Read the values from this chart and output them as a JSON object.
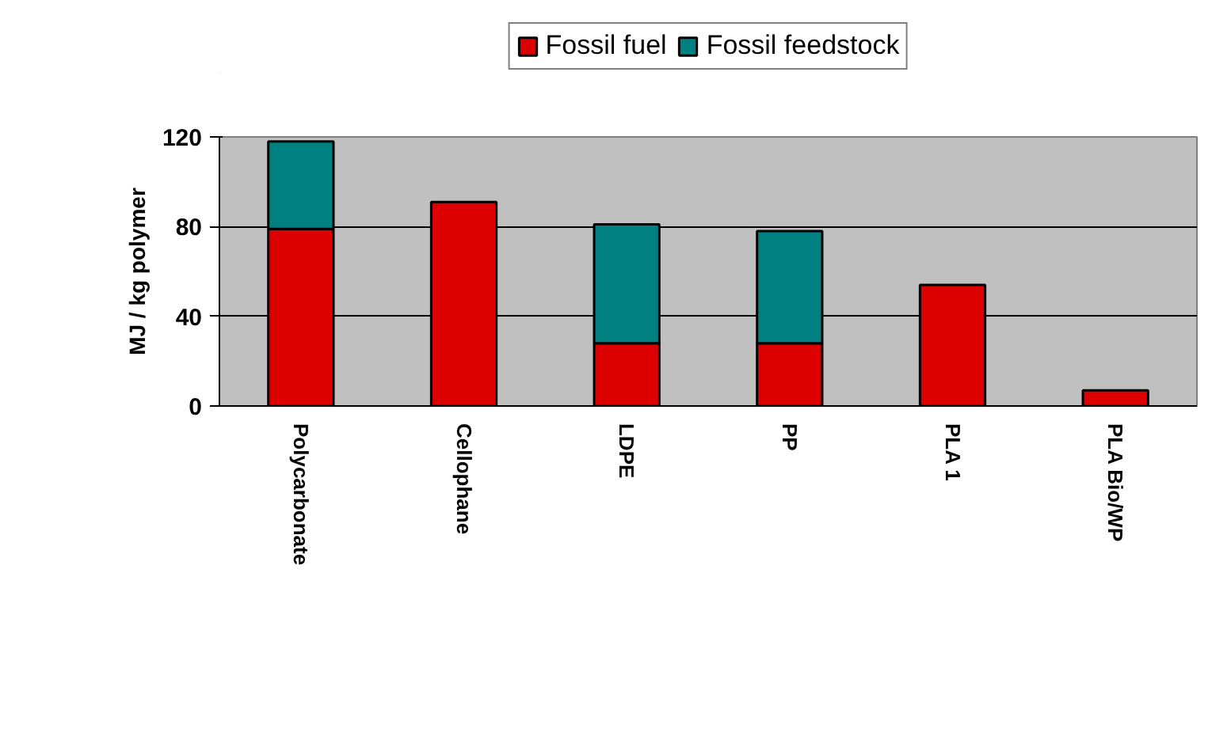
{
  "chart_data": {
    "type": "bar",
    "stacked": true,
    "categories": [
      "Polycarbonate",
      "Cellophane",
      "LDPE",
      "PP",
      "PLA 1",
      "PLA Bio/WP"
    ],
    "series": [
      {
        "name": "Fossil fuel",
        "color": "#dd0000",
        "values": [
          79,
          91,
          28,
          28,
          54,
          7
        ]
      },
      {
        "name": "Fossil feedstock",
        "color": "#008080",
        "values": [
          39,
          null,
          53,
          50,
          null,
          null
        ]
      }
    ],
    "ylabel": "MJ / kg polymer",
    "ylim": [
      0,
      120
    ],
    "yticks": [
      0,
      40,
      80,
      120
    ],
    "grid": "y",
    "legend": "top"
  }
}
